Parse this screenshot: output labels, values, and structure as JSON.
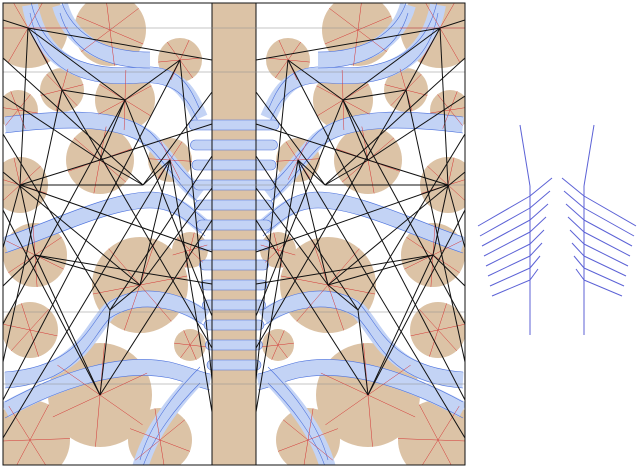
{
  "colors": {
    "background": "#ffffff",
    "circle_fill": "#dcc3a6",
    "river_fill": "#c3d3f5",
    "river_edge": "#4c71dc",
    "crease_black": "#111111",
    "crease_red": "#d43434",
    "crease_grey": "#8c8c8c",
    "tree_edge": "#5c62d6"
  },
  "crease_pattern": {
    "symmetry": "bilateral",
    "circle_count_half": 14,
    "central_strip_bands": 13
  },
  "tree_diagram": {
    "branches_per_side": 8
  }
}
